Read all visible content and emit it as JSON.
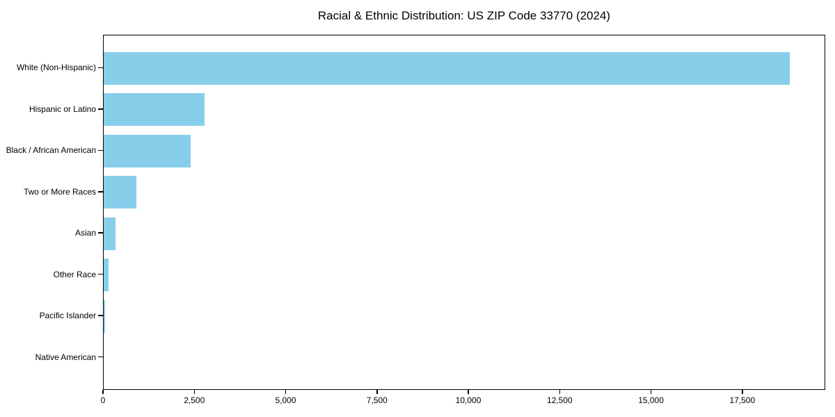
{
  "title": "Racial & Ethnic Distribution: US ZIP Code 33770 (2024)",
  "chart_data": {
    "type": "bar",
    "orientation": "horizontal",
    "title": "Racial & Ethnic Distribution: US ZIP Code 33770 (2024)",
    "xlabel": "",
    "ylabel": "",
    "categories": [
      "White (Non-Hispanic)",
      "Hispanic or Latino",
      "Black / African American",
      "Two or More Races",
      "Asian",
      "Other Race",
      "Pacific Islander",
      "Native American"
    ],
    "values": [
      18820,
      2770,
      2390,
      900,
      330,
      140,
      45,
      0
    ],
    "xlim": [
      0,
      19770
    ],
    "xtick_values": [
      0,
      2500,
      5000,
      7500,
      10000,
      12500,
      15000,
      17500
    ],
    "xtick_labels": [
      "0",
      "2,500",
      "5,000",
      "7,500",
      "10,000",
      "12,500",
      "15,000",
      "17,500"
    ],
    "bar_color": "#87CEEB",
    "background_color": "#ffffff",
    "frame_color": "#000000",
    "grid": false,
    "legend": null
  }
}
